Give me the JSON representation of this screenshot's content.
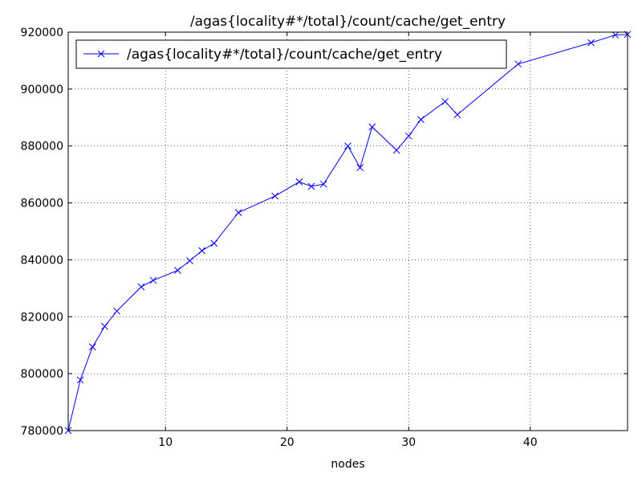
{
  "chart_data": {
    "type": "line",
    "title": "/agas{locality#*/total}/count/cache/get_entry",
    "xlabel": "nodes",
    "ylabel": "",
    "xlim": [
      2,
      48
    ],
    "ylim": [
      780000,
      920000
    ],
    "xticks": [
      10,
      20,
      30,
      40
    ],
    "yticks": [
      780000,
      800000,
      820000,
      840000,
      860000,
      880000,
      900000,
      920000
    ],
    "grid": true,
    "legend_position": "top-left",
    "series": [
      {
        "name": "/agas{locality#*/total}/count/cache/get_entry",
        "color": "#0000ff",
        "marker": "x",
        "x": [
          2,
          3,
          4,
          5,
          6,
          8,
          9,
          11,
          12,
          13,
          14,
          16,
          19,
          21,
          22,
          23,
          25,
          26,
          27,
          29,
          30,
          31,
          33,
          34,
          39,
          45,
          47,
          48
        ],
        "y": [
          780000,
          797800,
          809400,
          816600,
          822000,
          830500,
          832800,
          836300,
          839700,
          843200,
          845800,
          856600,
          862400,
          867400,
          865800,
          866600,
          880000,
          872400,
          886700,
          878500,
          883500,
          889300,
          895600,
          891000,
          908800,
          916300,
          919000,
          919200
        ]
      }
    ]
  }
}
